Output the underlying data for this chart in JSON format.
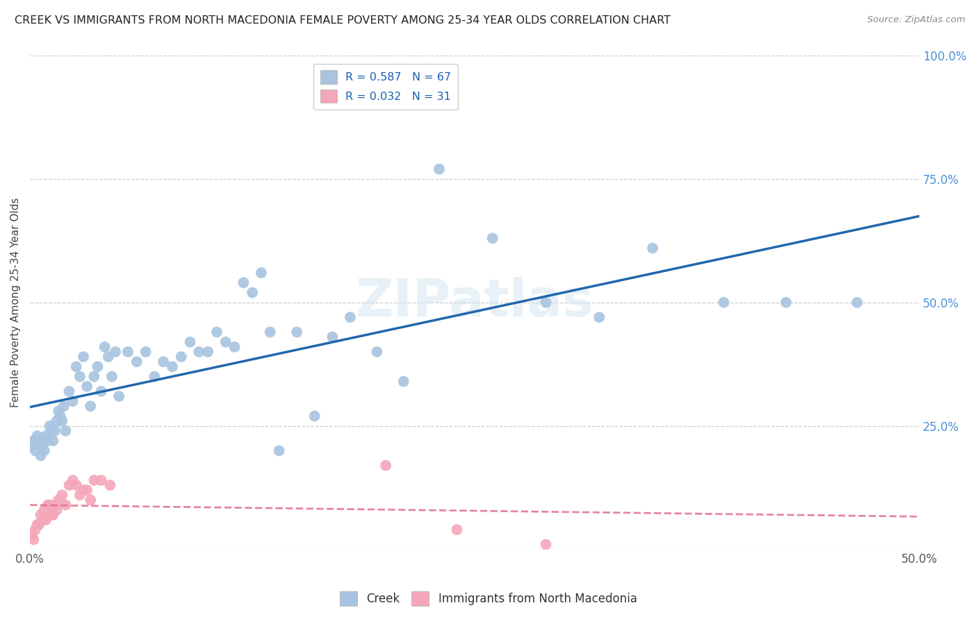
{
  "title": "CREEK VS IMMIGRANTS FROM NORTH MACEDONIA FEMALE POVERTY AMONG 25-34 YEAR OLDS CORRELATION CHART",
  "source": "Source: ZipAtlas.com",
  "ylabel": "Female Poverty Among 25-34 Year Olds",
  "xlim": [
    0.0,
    0.5
  ],
  "ylim": [
    0.0,
    1.0
  ],
  "creek_color": "#a8c4e0",
  "creek_line_color": "#2166ac",
  "imm_color": "#f4a7b9",
  "imm_line_color": "#e07090",
  "R_creek": 0.587,
  "N_creek": 67,
  "R_imm": 0.032,
  "N_imm": 31,
  "watermark": "ZIPatlas",
  "creek_x": [
    0.001,
    0.002,
    0.003,
    0.004,
    0.005,
    0.006,
    0.007,
    0.008,
    0.009,
    0.01,
    0.011,
    0.012,
    0.013,
    0.014,
    0.015,
    0.016,
    0.017,
    0.018,
    0.019,
    0.02,
    0.022,
    0.024,
    0.026,
    0.028,
    0.03,
    0.032,
    0.034,
    0.036,
    0.038,
    0.04,
    0.042,
    0.044,
    0.046,
    0.048,
    0.05,
    0.055,
    0.06,
    0.065,
    0.07,
    0.075,
    0.08,
    0.085,
    0.09,
    0.095,
    0.1,
    0.105,
    0.11,
    0.115,
    0.12,
    0.125,
    0.13,
    0.135,
    0.14,
    0.15,
    0.16,
    0.17,
    0.18,
    0.195,
    0.21,
    0.23,
    0.26,
    0.29,
    0.32,
    0.35,
    0.39,
    0.425,
    0.465
  ],
  "creek_y": [
    0.21,
    0.22,
    0.2,
    0.23,
    0.22,
    0.19,
    0.21,
    0.2,
    0.23,
    0.22,
    0.25,
    0.24,
    0.22,
    0.24,
    0.26,
    0.28,
    0.27,
    0.26,
    0.29,
    0.24,
    0.32,
    0.3,
    0.37,
    0.35,
    0.39,
    0.33,
    0.29,
    0.35,
    0.37,
    0.32,
    0.41,
    0.39,
    0.35,
    0.4,
    0.31,
    0.4,
    0.38,
    0.4,
    0.35,
    0.38,
    0.37,
    0.39,
    0.42,
    0.4,
    0.4,
    0.44,
    0.42,
    0.41,
    0.54,
    0.52,
    0.56,
    0.44,
    0.2,
    0.44,
    0.27,
    0.43,
    0.47,
    0.4,
    0.34,
    0.77,
    0.63,
    0.5,
    0.47,
    0.61,
    0.5,
    0.5,
    0.5
  ],
  "imm_x": [
    0.001,
    0.002,
    0.003,
    0.004,
    0.005,
    0.006,
    0.007,
    0.008,
    0.009,
    0.01,
    0.011,
    0.012,
    0.013,
    0.014,
    0.015,
    0.016,
    0.018,
    0.02,
    0.022,
    0.024,
    0.026,
    0.028,
    0.03,
    0.032,
    0.034,
    0.036,
    0.04,
    0.045,
    0.2,
    0.24,
    0.29
  ],
  "imm_y": [
    0.03,
    0.02,
    0.04,
    0.05,
    0.05,
    0.07,
    0.06,
    0.08,
    0.06,
    0.09,
    0.09,
    0.07,
    0.07,
    0.09,
    0.08,
    0.1,
    0.11,
    0.09,
    0.13,
    0.14,
    0.13,
    0.11,
    0.12,
    0.12,
    0.1,
    0.14,
    0.14,
    0.13,
    0.17,
    0.04,
    0.01
  ]
}
